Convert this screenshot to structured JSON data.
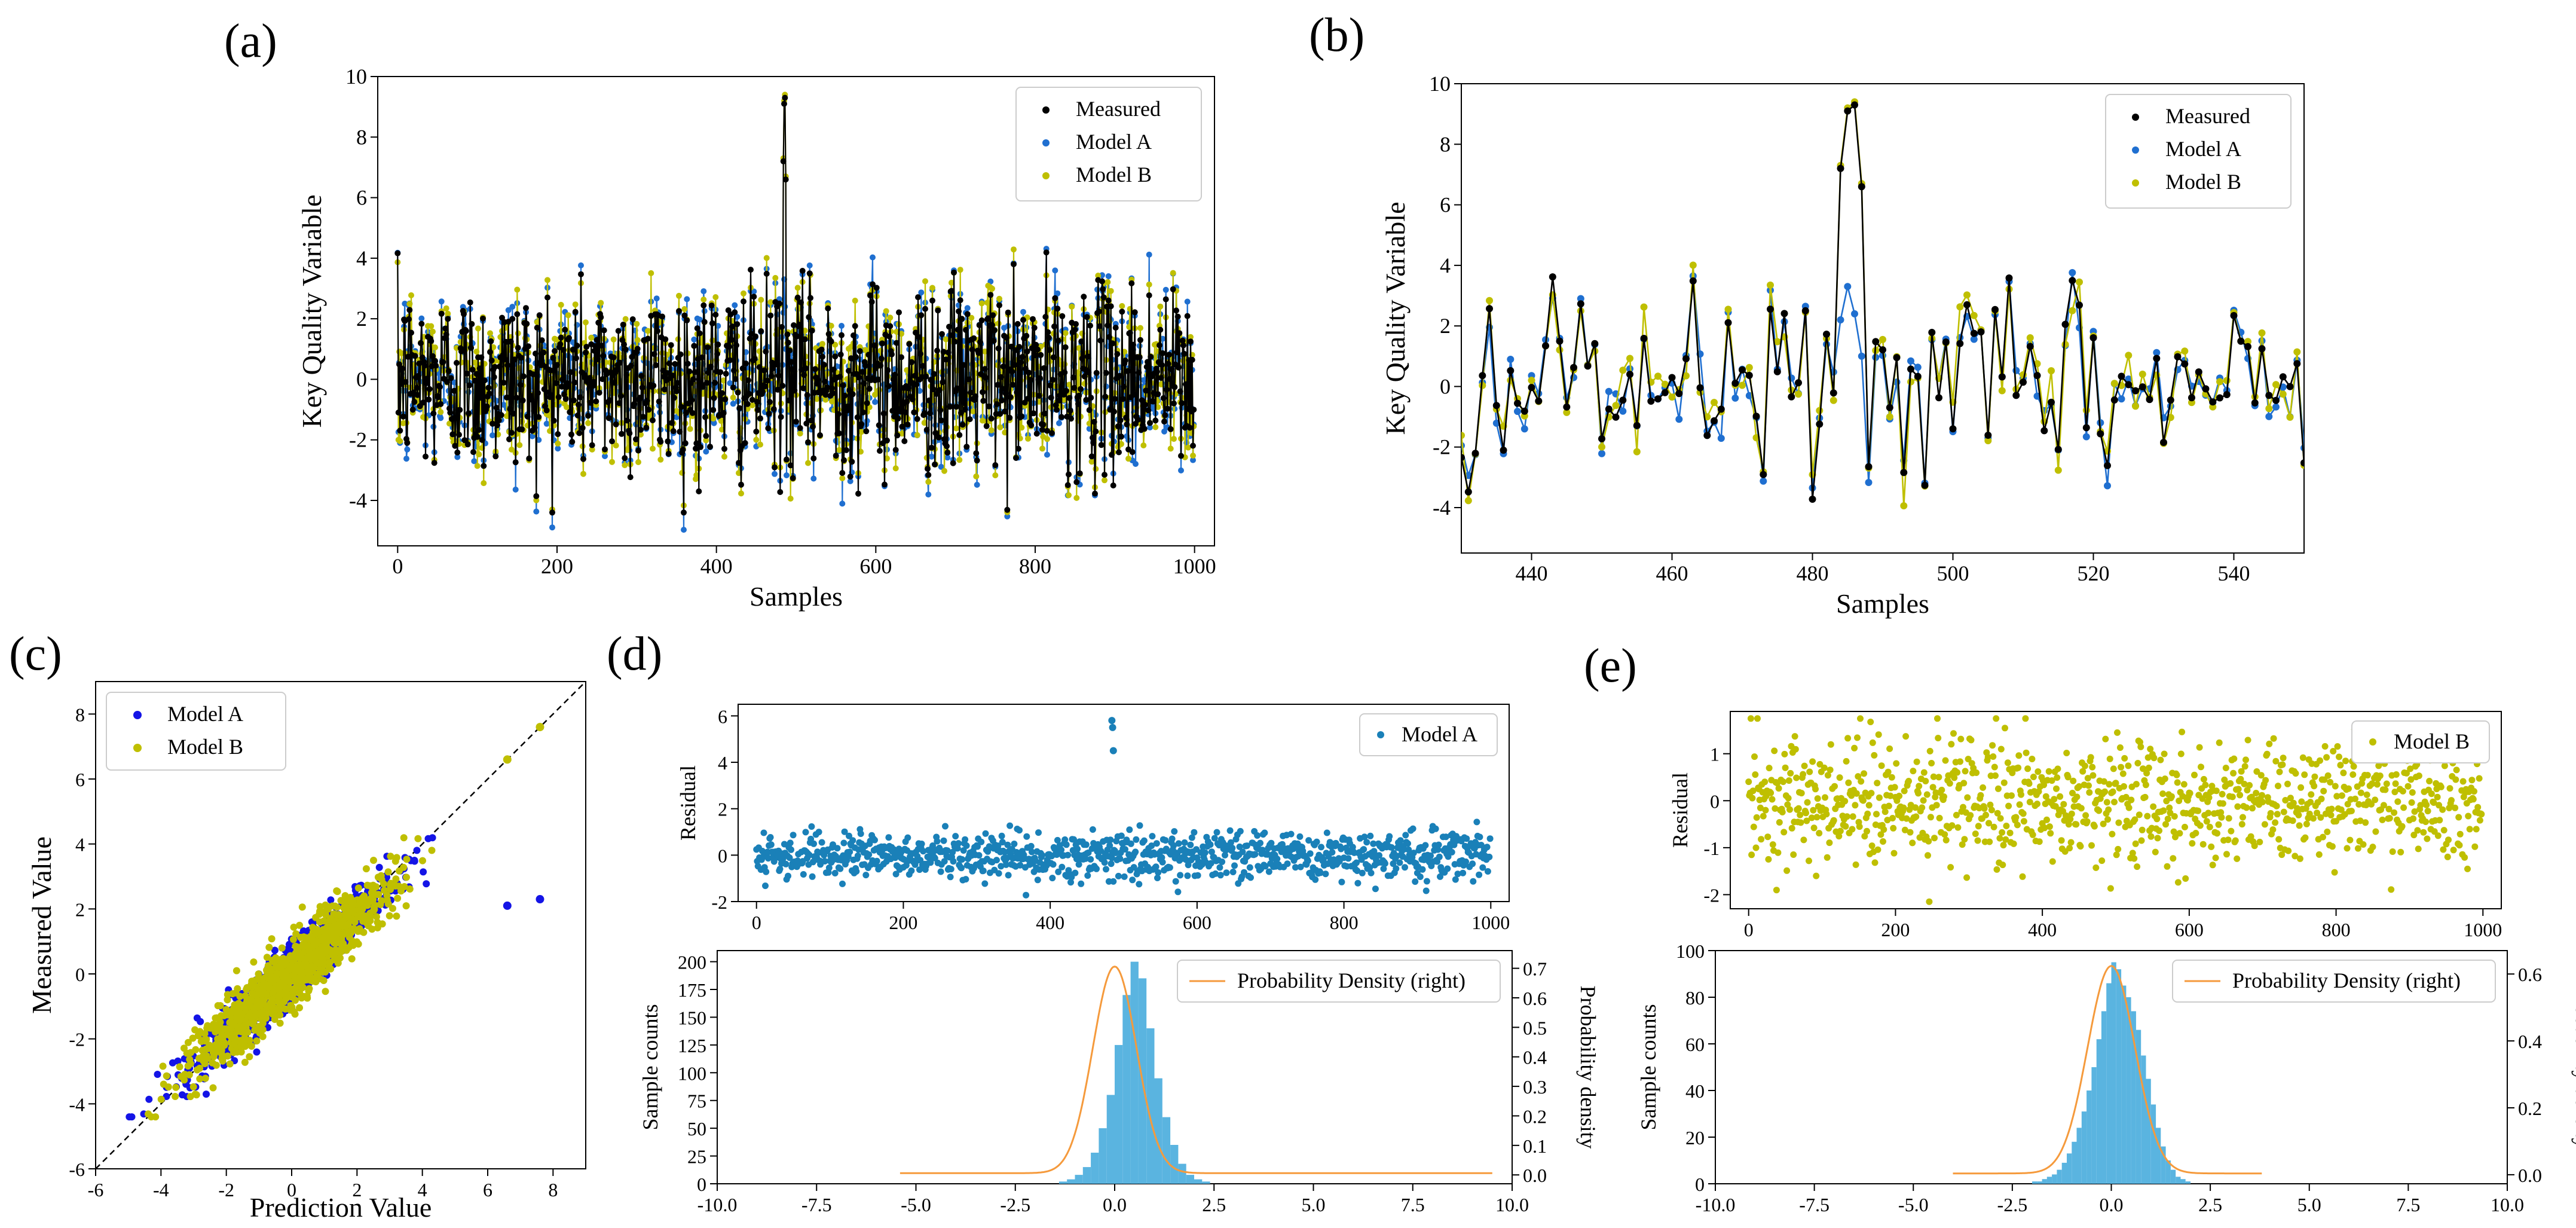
{
  "figure": {
    "panel_labels": [
      "(a)",
      "(b)",
      "(c)",
      "(d)",
      "(e)"
    ]
  },
  "chart_data": [
    {
      "id": "a",
      "type": "line",
      "xlabel": "Samples",
      "ylabel": "Key Quality Variable",
      "xlim": [
        -25,
        1025
      ],
      "ylim": [
        -5.5,
        10
      ],
      "xticks": [
        0,
        200,
        400,
        600,
        800,
        1000
      ],
      "xtick_labels": [
        "0",
        "200",
        "400",
        "600",
        "800",
        "1000"
      ],
      "yticks": [
        -4,
        -2,
        0,
        2,
        4,
        6,
        8,
        10
      ],
      "ytick_labels": [
        "-4",
        "-2",
        "0",
        "2",
        "4",
        "6",
        "8",
        "10"
      ],
      "legend": [
        "Measured",
        "Model A",
        "Model B"
      ],
      "legend_position": "top-right",
      "series": [
        {
          "name": "Measured",
          "color": "#000000"
        },
        {
          "name": "Model A",
          "color": "#1f6fd0"
        },
        {
          "name": "Model B",
          "color": "#bfbf00"
        }
      ],
      "n_samples": 1000,
      "noise_sd": 1.5,
      "peak": {
        "x": [
          484,
          485,
          486,
          487
        ],
        "y": [
          7.2,
          9.1,
          9.3,
          6.6
        ]
      }
    },
    {
      "id": "b",
      "type": "line",
      "xlabel": "Samples",
      "ylabel": "Key Quality Variable",
      "xlim": [
        430,
        550
      ],
      "ylim": [
        -5.5,
        10
      ],
      "xticks": [
        440,
        460,
        480,
        500,
        520,
        540
      ],
      "xtick_labels": [
        "440",
        "460",
        "480",
        "500",
        "520",
        "540"
      ],
      "yticks": [
        -4,
        -2,
        0,
        2,
        4,
        6,
        8,
        10
      ],
      "ytick_labels": [
        "-4",
        "-2",
        "0",
        "2",
        "4",
        "6",
        "8",
        "10"
      ],
      "legend": [
        "Measured",
        "Model A",
        "Model B"
      ],
      "legend_position": "top-right",
      "series": [
        {
          "name": "Measured",
          "color": "#000000"
        },
        {
          "name": "Model A",
          "color": "#1f6fd0"
        },
        {
          "name": "Model B",
          "color": "#bfbf00"
        }
      ],
      "peak_measured": {
        "x": [
          484,
          485,
          486,
          487
        ],
        "y": [
          7.0,
          9.0,
          9.2,
          6.5
        ]
      },
      "peak_model_a": {
        "x": [
          484,
          485,
          486,
          487
        ],
        "y": [
          2.2,
          3.3,
          2.4,
          1.0
        ]
      }
    },
    {
      "id": "c",
      "type": "scatter",
      "xlabel": "Prediction Value",
      "ylabel": "Measured Value",
      "xlim": [
        -6,
        9
      ],
      "ylim": [
        -6,
        9
      ],
      "xticks": [
        -6,
        -4,
        -2,
        0,
        2,
        4,
        6,
        8
      ],
      "xtick_labels": [
        "-6",
        "-4",
        "-2",
        "0",
        "2",
        "4",
        "6",
        "8"
      ],
      "yticks": [
        -6,
        -4,
        -2,
        0,
        2,
        4,
        6,
        8
      ],
      "ytick_labels": [
        "-6",
        "-4",
        "-2",
        "0",
        "2",
        "4",
        "6",
        "8"
      ],
      "legend": [
        "Model A",
        "Model B"
      ],
      "legend_position": "top-left",
      "series": [
        {
          "name": "Model A",
          "color": "#1414e6"
        },
        {
          "name": "Model B",
          "color": "#bfbf00"
        }
      ],
      "diagonal": [
        [
          -6,
          -6
        ],
        [
          9,
          9
        ]
      ],
      "outliers_model_a": [
        [
          6.6,
          2.1
        ],
        [
          7.6,
          2.3
        ]
      ],
      "extreme_points_model_b": [
        [
          6.6,
          6.6
        ],
        [
          7.6,
          7.6
        ]
      ]
    },
    {
      "id": "d",
      "type": "scatter+histogram",
      "residual": {
        "ylabel": "Residual",
        "xlim": [
          -25,
          1025
        ],
        "ylim": [
          -2,
          6.5
        ],
        "xticks": [
          0,
          200,
          400,
          600,
          800,
          1000
        ],
        "xtick_labels": [
          "0",
          "200",
          "400",
          "600",
          "800",
          "1000"
        ],
        "yticks": [
          -2,
          0,
          2,
          4,
          6
        ],
        "ytick_labels": [
          "-2",
          "0",
          "2",
          "4",
          "6"
        ],
        "legend": [
          "Model A"
        ],
        "color": "#1a80b8",
        "residual_sd": 0.5,
        "outliers": [
          [
            484,
            5.8
          ],
          [
            485,
            5.5
          ],
          [
            486,
            4.5
          ]
        ]
      },
      "histogram": {
        "ylabel_left": "Sample counts",
        "ylabel_right": "Probability density",
        "xlim": [
          -10,
          10
        ],
        "ylim_left": [
          0,
          210
        ],
        "ylim_right": [
          -0.03,
          0.76
        ],
        "xticks": [
          -10,
          -7.5,
          -5,
          -2.5,
          0,
          2.5,
          5,
          7.5,
          10
        ],
        "xtick_labels": [
          "-10.0",
          "-7.5",
          "-5.0",
          "-2.5",
          "0.0",
          "2.5",
          "5.0",
          "7.5",
          "10.0"
        ],
        "yticks_left": [
          0,
          25,
          50,
          75,
          100,
          125,
          150,
          175,
          200
        ],
        "ytick_labels_left": [
          "0",
          "25",
          "50",
          "75",
          "100",
          "125",
          "150",
          "175",
          "200"
        ],
        "yticks_right": [
          0,
          0.1,
          0.2,
          0.3,
          0.4,
          0.5,
          0.6,
          0.7
        ],
        "ytick_labels_right": [
          "0.0",
          "0.1",
          "0.2",
          "0.3",
          "0.4",
          "0.5",
          "0.6",
          "0.7"
        ],
        "legend": [
          "Probability Density (right)"
        ],
        "bar_color": "#5ab4e0",
        "curve_color": "#f59a3c",
        "bin_width": 0.2,
        "bin_start": -1.4,
        "counts": [
          2,
          4,
          8,
          15,
          28,
          50,
          80,
          125,
          170,
          200,
          185,
          140,
          95,
          60,
          35,
          18,
          8,
          4,
          2
        ],
        "density_x_range": [
          -5.4,
          9.5
        ],
        "density_peak": 0.7,
        "density_sd": 0.55,
        "density_baseline": 0.006
      }
    },
    {
      "id": "e",
      "type": "scatter+histogram",
      "residual": {
        "ylabel": "Residual",
        "xlim": [
          -25,
          1025
        ],
        "ylim": [
          -2.3,
          1.9
        ],
        "xticks": [
          0,
          200,
          400,
          600,
          800,
          1000
        ],
        "xtick_labels": [
          "0",
          "200",
          "400",
          "600",
          "800",
          "1000"
        ],
        "yticks": [
          -2,
          -1,
          0,
          1
        ],
        "ytick_labels": [
          "-2",
          "-1",
          "0",
          "1"
        ],
        "legend": [
          "Model B"
        ],
        "color": "#bfbf00",
        "residual_sd": 0.65
      },
      "histogram": {
        "ylabel_left": "Sample counts",
        "ylabel_right": "Probability density",
        "xlim": [
          -10,
          10
        ],
        "ylim_left": [
          0,
          100
        ],
        "ylim_right": [
          -0.027,
          0.67
        ],
        "xticks": [
          -10,
          -7.5,
          -5,
          -2.5,
          0,
          2.5,
          5,
          7.5,
          10
        ],
        "xtick_labels": [
          "-10.0",
          "-7.5",
          "-5.0",
          "-2.5",
          "0.0",
          "2.5",
          "5.0",
          "7.5",
          "10.0"
        ],
        "yticks_left": [
          0,
          20,
          40,
          60,
          80,
          100
        ],
        "ytick_labels_left": [
          "0",
          "20",
          "40",
          "60",
          "80",
          "100"
        ],
        "yticks_right": [
          0,
          0.2,
          0.4,
          0.6
        ],
        "ytick_labels_right": [
          "0.0",
          "0.2",
          "0.4",
          "0.6"
        ],
        "legend": [
          "Probability Density (right)"
        ],
        "bar_color": "#5ab4e0",
        "curve_color": "#f59a3c",
        "bin_width": 0.125,
        "bin_start": -2.0,
        "counts": [
          1,
          1,
          2,
          3,
          4,
          6,
          9,
          13,
          18,
          24,
          31,
          40,
          50,
          62,
          74,
          86,
          95,
          92,
          85,
          80,
          74,
          66,
          55,
          45,
          34,
          24,
          16,
          10,
          6,
          3,
          2,
          1
        ],
        "density_x_range": [
          -4.0,
          3.8
        ],
        "density_peak": 0.62,
        "density_sd": 0.6,
        "density_baseline": 0.004
      }
    }
  ]
}
